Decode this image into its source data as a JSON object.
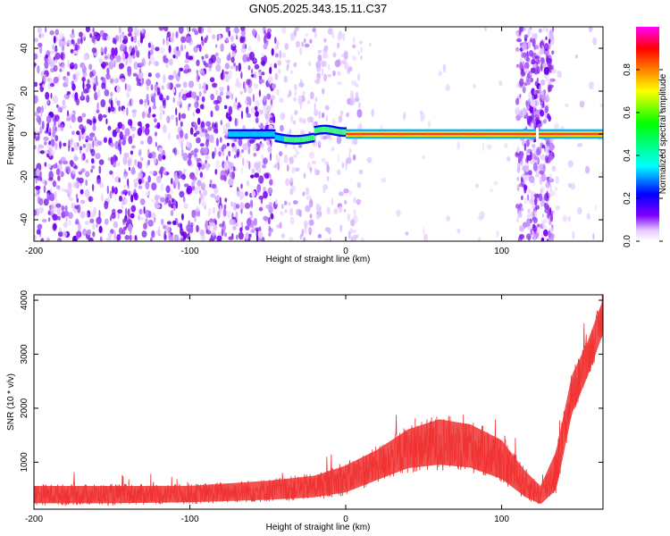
{
  "title": "GN05.2025.343.15.11.C37",
  "chart_data": [
    {
      "type": "heatmap",
      "name": "spectrogram",
      "xlabel": "Height of straight line (km)",
      "ylabel": "Frequency (Hz)",
      "xlim": [
        -200,
        165
      ],
      "ylim": [
        -50,
        50
      ],
      "x_ticks": [
        -200,
        -100,
        0,
        100
      ],
      "y_ticks": [
        -40,
        -20,
        0,
        20,
        40
      ],
      "colorbar": {
        "label": "Normalized spectral amplitude",
        "range": [
          0,
          1
        ],
        "ticks": [
          0.0,
          0.2,
          0.4,
          0.6,
          0.8
        ],
        "colors": [
          "#ffffff",
          "#e6ccff",
          "#8000ff",
          "#0000ff",
          "#00ffff",
          "#00ff00",
          "#ffff00",
          "#ff8000",
          "#ff0000",
          "#ff00ff"
        ]
      },
      "features": {
        "noise_region_km": [
          -200,
          -45
        ],
        "carrier_line": {
          "frequency_hz": 0,
          "start_km": -75,
          "end_km": 165,
          "peak_amplitude": 0.9
        },
        "noise_band_km": [
          110,
          133
        ],
        "gap_region_km": [
          5,
          105
        ]
      }
    },
    {
      "type": "line",
      "name": "snr",
      "xlabel": "Height of straight line (km)",
      "ylabel": "SNR (10 * v/v)",
      "xlim": [
        -200,
        165
      ],
      "ylim": [
        130,
        4100
      ],
      "x_ticks": [
        -200,
        -100,
        0,
        100
      ],
      "y_ticks": [
        1000,
        2000,
        3000,
        4000
      ],
      "color": "#f03232",
      "envelope": {
        "x": [
          -200,
          -150,
          -100,
          -50,
          -20,
          0,
          20,
          40,
          60,
          80,
          100,
          115,
          125,
          135,
          145,
          155,
          165
        ],
        "low": [
          200,
          200,
          220,
          260,
          300,
          380,
          600,
          800,
          850,
          800,
          600,
          300,
          180,
          400,
          1800,
          2500,
          3300
        ],
        "high": [
          600,
          600,
          600,
          700,
          800,
          1000,
          1300,
          1700,
          1900,
          1800,
          1500,
          900,
          600,
          1300,
          2700,
          3300,
          4100
        ]
      }
    }
  ]
}
